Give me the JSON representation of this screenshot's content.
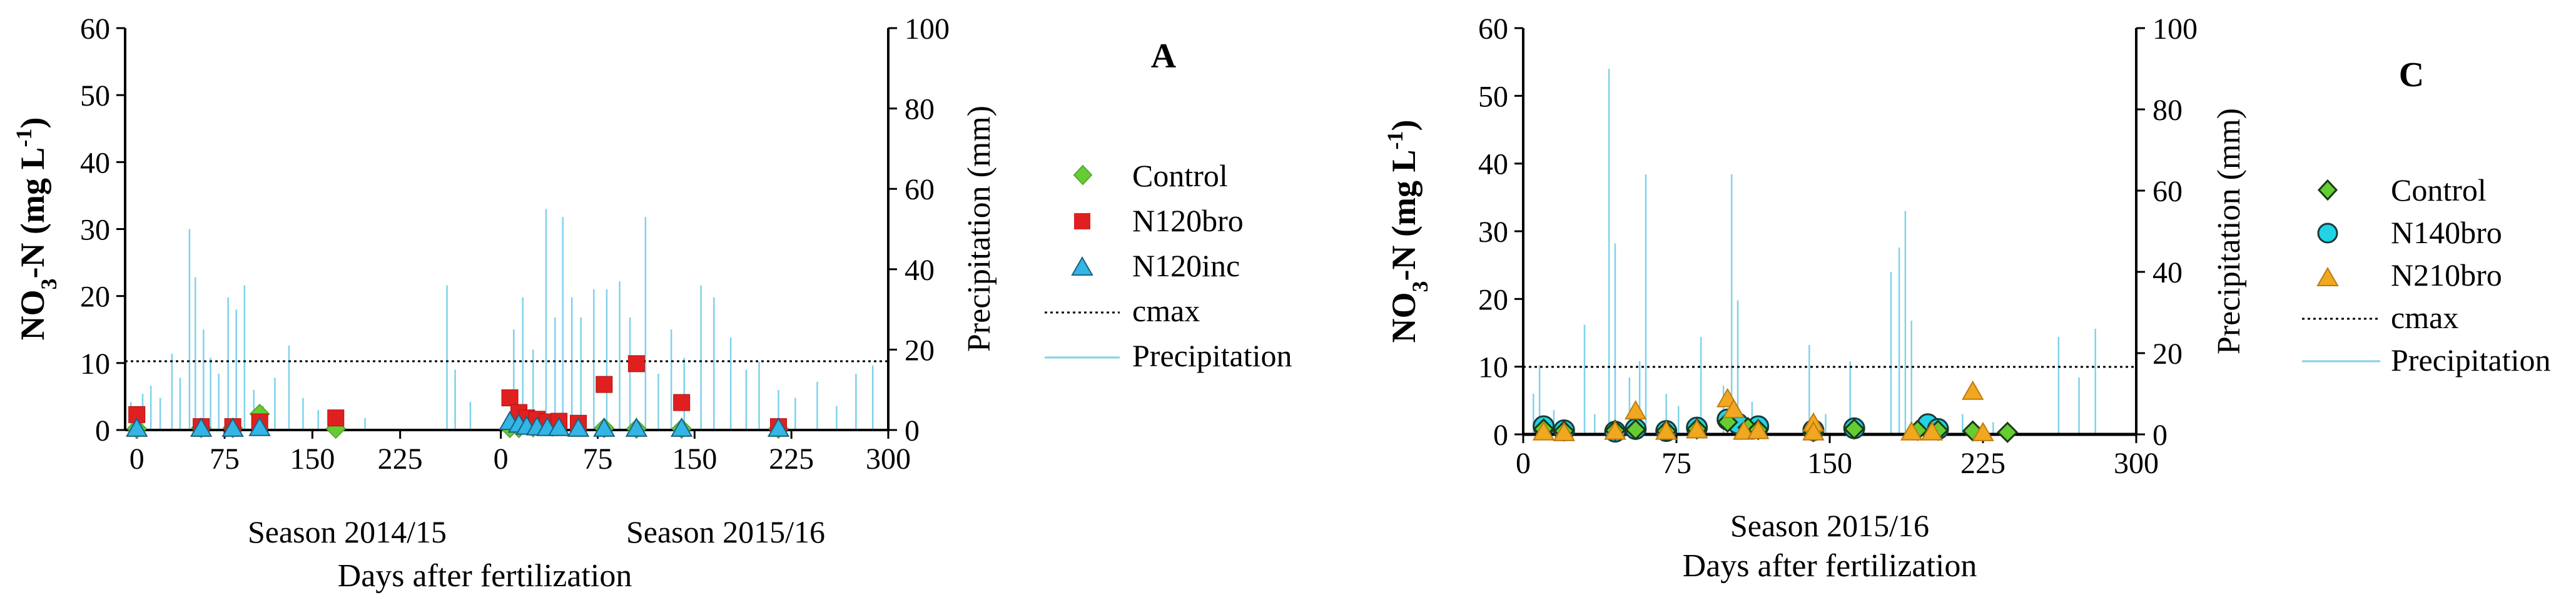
{
  "chart_data": [
    {
      "panel": "A",
      "type": "scatter",
      "ylabel": "NO3-N (mg L-1)",
      "y2label": "Precipitation (mm)",
      "xlabel": "Days after fertilization",
      "ylim": [
        0,
        60
      ],
      "y2lim": [
        0,
        100
      ],
      "y_ticks": [
        0,
        10,
        20,
        30,
        40,
        50,
        60
      ],
      "y2_ticks": [
        0,
        20,
        40,
        60,
        80,
        100
      ],
      "seasons": [
        {
          "label": "Season 2014/15",
          "xlim": [
            -10,
            300
          ],
          "ticks": [
            0,
            75,
            150,
            225
          ]
        },
        {
          "label": "Season 2015/16",
          "xlim": [
            -10,
            300
          ],
          "ticks": [
            0,
            75,
            150,
            225,
            300
          ]
        }
      ],
      "x_tick_labels": [
        "0",
        "75",
        "150",
        "225",
        "0",
        "75",
        "150",
        "225",
        "300"
      ],
      "cmax": 10,
      "legend": [
        "Control",
        "N120bro",
        "N120inc",
        "cmax",
        "Precipitation"
      ],
      "series": [
        {
          "name": "Control",
          "marker": "diamond",
          "color": "#66cc33",
          "points": [
            {
              "s": 0,
              "x": 0,
              "y": 0.2
            },
            {
              "s": 0,
              "x": 55,
              "y": 0.3
            },
            {
              "s": 0,
              "x": 82,
              "y": 0.3
            },
            {
              "s": 0,
              "x": 105,
              "y": 2.4
            },
            {
              "s": 0,
              "x": 170,
              "y": 0.2
            },
            {
              "s": 1,
              "x": 7,
              "y": 0.3
            },
            {
              "s": 1,
              "x": 14,
              "y": 0.3
            },
            {
              "s": 1,
              "x": 25,
              "y": 0.4
            },
            {
              "s": 1,
              "x": 40,
              "y": 0.5
            },
            {
              "s": 1,
              "x": 80,
              "y": 0.3
            },
            {
              "s": 1,
              "x": 105,
              "y": 0.2
            },
            {
              "s": 1,
              "x": 140,
              "y": 0.2
            },
            {
              "s": 1,
              "x": 215,
              "y": 0.2
            }
          ]
        },
        {
          "name": "N120bro",
          "marker": "square",
          "color": "#e02020",
          "points": [
            {
              "s": 0,
              "x": 0,
              "y": 2.3
            },
            {
              "s": 0,
              "x": 55,
              "y": 0.5
            },
            {
              "s": 0,
              "x": 82,
              "y": 0.5
            },
            {
              "s": 0,
              "x": 105,
              "y": 1.2
            },
            {
              "s": 0,
              "x": 170,
              "y": 1.8
            },
            {
              "s": 1,
              "x": 7,
              "y": 4.8
            },
            {
              "s": 1,
              "x": 14,
              "y": 2.6
            },
            {
              "s": 1,
              "x": 20,
              "y": 1.8
            },
            {
              "s": 1,
              "x": 28,
              "y": 1.6
            },
            {
              "s": 1,
              "x": 36,
              "y": 1.2
            },
            {
              "s": 1,
              "x": 45,
              "y": 1.3
            },
            {
              "s": 1,
              "x": 60,
              "y": 1.0
            },
            {
              "s": 1,
              "x": 80,
              "y": 6.8
            },
            {
              "s": 1,
              "x": 105,
              "y": 9.9
            },
            {
              "s": 1,
              "x": 140,
              "y": 4.1
            },
            {
              "s": 1,
              "x": 215,
              "y": 0.5
            }
          ]
        },
        {
          "name": "N120inc",
          "marker": "triangle",
          "color": "#33b5e5",
          "points": [
            {
              "s": 0,
              "x": 0,
              "y": 0.2
            },
            {
              "s": 0,
              "x": 55,
              "y": 0.2
            },
            {
              "s": 0,
              "x": 82,
              "y": 0.2
            },
            {
              "s": 0,
              "x": 105,
              "y": 0.3
            },
            {
              "s": 1,
              "x": 7,
              "y": 1.2
            },
            {
              "s": 1,
              "x": 14,
              "y": 0.8
            },
            {
              "s": 1,
              "x": 20,
              "y": 0.5
            },
            {
              "s": 1,
              "x": 28,
              "y": 0.4
            },
            {
              "s": 1,
              "x": 36,
              "y": 0.3
            },
            {
              "s": 1,
              "x": 45,
              "y": 0.3
            },
            {
              "s": 1,
              "x": 60,
              "y": 0.2
            },
            {
              "s": 1,
              "x": 80,
              "y": 0.2
            },
            {
              "s": 1,
              "x": 105,
              "y": 0.2
            },
            {
              "s": 1,
              "x": 140,
              "y": 0.2
            },
            {
              "s": 1,
              "x": 215,
              "y": 0.2
            }
          ]
        }
      ],
      "precipitation": [
        {
          "s": 0,
          "x": -5,
          "y": 7
        },
        {
          "s": 0,
          "x": 5,
          "y": 9
        },
        {
          "s": 0,
          "x": 12,
          "y": 11
        },
        {
          "s": 0,
          "x": 20,
          "y": 8
        },
        {
          "s": 0,
          "x": 30,
          "y": 19
        },
        {
          "s": 0,
          "x": 37,
          "y": 13
        },
        {
          "s": 0,
          "x": 45,
          "y": 50
        },
        {
          "s": 0,
          "x": 50,
          "y": 38
        },
        {
          "s": 0,
          "x": 57,
          "y": 25
        },
        {
          "s": 0,
          "x": 63,
          "y": 18
        },
        {
          "s": 0,
          "x": 70,
          "y": 14
        },
        {
          "s": 0,
          "x": 78,
          "y": 33
        },
        {
          "s": 0,
          "x": 85,
          "y": 30
        },
        {
          "s": 0,
          "x": 92,
          "y": 36
        },
        {
          "s": 0,
          "x": 100,
          "y": 10
        },
        {
          "s": 0,
          "x": 108,
          "y": 6
        },
        {
          "s": 0,
          "x": 118,
          "y": 13
        },
        {
          "s": 0,
          "x": 130,
          "y": 21
        },
        {
          "s": 0,
          "x": 142,
          "y": 8
        },
        {
          "s": 0,
          "x": 155,
          "y": 5
        },
        {
          "s": 0,
          "x": 175,
          "y": 4
        },
        {
          "s": 0,
          "x": 195,
          "y": 3
        },
        {
          "s": 0,
          "x": 265,
          "y": 36
        },
        {
          "s": 0,
          "x": 272,
          "y": 15
        },
        {
          "s": 0,
          "x": 285,
          "y": 7
        },
        {
          "s": 1,
          "x": 10,
          "y": 25
        },
        {
          "s": 1,
          "x": 17,
          "y": 33
        },
        {
          "s": 1,
          "x": 25,
          "y": 20
        },
        {
          "s": 1,
          "x": 35,
          "y": 55
        },
        {
          "s": 1,
          "x": 42,
          "y": 28
        },
        {
          "s": 1,
          "x": 48,
          "y": 53
        },
        {
          "s": 1,
          "x": 55,
          "y": 33
        },
        {
          "s": 1,
          "x": 62,
          "y": 28
        },
        {
          "s": 1,
          "x": 72,
          "y": 35
        },
        {
          "s": 1,
          "x": 82,
          "y": 35
        },
        {
          "s": 1,
          "x": 92,
          "y": 37
        },
        {
          "s": 1,
          "x": 100,
          "y": 28
        },
        {
          "s": 1,
          "x": 112,
          "y": 53
        },
        {
          "s": 1,
          "x": 122,
          "y": 14
        },
        {
          "s": 1,
          "x": 132,
          "y": 25
        },
        {
          "s": 1,
          "x": 142,
          "y": 18
        },
        {
          "s": 1,
          "x": 155,
          "y": 36
        },
        {
          "s": 1,
          "x": 165,
          "y": 33
        },
        {
          "s": 1,
          "x": 178,
          "y": 23
        },
        {
          "s": 1,
          "x": 190,
          "y": 15
        },
        {
          "s": 1,
          "x": 200,
          "y": 17
        },
        {
          "s": 1,
          "x": 215,
          "y": 10
        },
        {
          "s": 1,
          "x": 228,
          "y": 8
        },
        {
          "s": 1,
          "x": 245,
          "y": 12
        },
        {
          "s": 1,
          "x": 260,
          "y": 6
        },
        {
          "s": 1,
          "x": 275,
          "y": 14
        },
        {
          "s": 1,
          "x": 288,
          "y": 16
        }
      ]
    },
    {
      "panel": "C",
      "type": "scatter",
      "ylabel": "NO3-N (mg L-1)",
      "y2label": "Precipitation (mm)",
      "xlabel": "Days after fertilization",
      "season_label": "Season 2015/16",
      "xlim": [
        0,
        300
      ],
      "x_ticks": [
        0,
        75,
        150,
        225,
        300
      ],
      "ylim": [
        0,
        60
      ],
      "y2lim": [
        0,
        100
      ],
      "y_ticks": [
        0,
        10,
        20,
        30,
        40,
        50,
        60
      ],
      "y2_ticks": [
        0,
        20,
        40,
        60,
        80,
        100
      ],
      "cmax": 10,
      "legend": [
        "Control",
        "N140bro",
        "N210bro",
        "cmax",
        "Precipitation"
      ],
      "series": [
        {
          "name": "Control",
          "marker": "diamond",
          "color": "#66cc33",
          "points": [
            {
              "x": 10,
              "y": 0.8
            },
            {
              "x": 20,
              "y": 0.5
            },
            {
              "x": 45,
              "y": 0.6
            },
            {
              "x": 55,
              "y": 0.7
            },
            {
              "x": 70,
              "y": 0.5
            },
            {
              "x": 85,
              "y": 0.8
            },
            {
              "x": 100,
              "y": 1.8
            },
            {
              "x": 110,
              "y": 1.0
            },
            {
              "x": 115,
              "y": 0.7
            },
            {
              "x": 142,
              "y": 0.4
            },
            {
              "x": 162,
              "y": 0.8
            },
            {
              "x": 193,
              "y": 0.6
            },
            {
              "x": 203,
              "y": 0.6
            },
            {
              "x": 220,
              "y": 0.5
            },
            {
              "x": 237,
              "y": 0.3
            }
          ]
        },
        {
          "name": "N140bro",
          "marker": "circle",
          "color": "#22d3e6",
          "points": [
            {
              "x": 10,
              "y": 1.2
            },
            {
              "x": 20,
              "y": 0.6
            },
            {
              "x": 45,
              "y": 0.4
            },
            {
              "x": 55,
              "y": 0.8
            },
            {
              "x": 70,
              "y": 0.5
            },
            {
              "x": 85,
              "y": 1.0
            },
            {
              "x": 100,
              "y": 2.2
            },
            {
              "x": 105,
              "y": 1.6
            },
            {
              "x": 115,
              "y": 1.2
            },
            {
              "x": 142,
              "y": 0.6
            },
            {
              "x": 162,
              "y": 0.9
            },
            {
              "x": 198,
              "y": 1.5
            },
            {
              "x": 203,
              "y": 0.8
            }
          ]
        },
        {
          "name": "N210bro",
          "marker": "triangle",
          "color": "#f0a820",
          "points": [
            {
              "x": 10,
              "y": 0.3
            },
            {
              "x": 20,
              "y": 0.2
            },
            {
              "x": 45,
              "y": 0.4
            },
            {
              "x": 55,
              "y": 3.4
            },
            {
              "x": 70,
              "y": 0.4
            },
            {
              "x": 85,
              "y": 0.6
            },
            {
              "x": 100,
              "y": 5.2
            },
            {
              "x": 103,
              "y": 3.6
            },
            {
              "x": 108,
              "y": 0.4
            },
            {
              "x": 115,
              "y": 0.5
            },
            {
              "x": 142,
              "y": 1.6
            },
            {
              "x": 142,
              "y": 0.3
            },
            {
              "x": 190,
              "y": 0.3
            },
            {
              "x": 200,
              "y": 0.3
            },
            {
              "x": 220,
              "y": 6.3
            },
            {
              "x": 225,
              "y": 0.2
            }
          ]
        }
      ],
      "precipitation": [
        {
          "x": 5,
          "y": 10
        },
        {
          "x": 8,
          "y": 17
        },
        {
          "x": 15,
          "y": 6
        },
        {
          "x": 30,
          "y": 27
        },
        {
          "x": 35,
          "y": 5
        },
        {
          "x": 42,
          "y": 90
        },
        {
          "x": 45,
          "y": 47
        },
        {
          "x": 52,
          "y": 14
        },
        {
          "x": 57,
          "y": 18
        },
        {
          "x": 60,
          "y": 64
        },
        {
          "x": 70,
          "y": 10
        },
        {
          "x": 76,
          "y": 7
        },
        {
          "x": 87,
          "y": 24
        },
        {
          "x": 98,
          "y": 12
        },
        {
          "x": 102,
          "y": 64
        },
        {
          "x": 105,
          "y": 33
        },
        {
          "x": 112,
          "y": 8
        },
        {
          "x": 140,
          "y": 22
        },
        {
          "x": 148,
          "y": 5
        },
        {
          "x": 160,
          "y": 18
        },
        {
          "x": 180,
          "y": 40
        },
        {
          "x": 184,
          "y": 46
        },
        {
          "x": 187,
          "y": 55
        },
        {
          "x": 190,
          "y": 28
        },
        {
          "x": 215,
          "y": 5
        },
        {
          "x": 230,
          "y": 3
        },
        {
          "x": 262,
          "y": 24
        },
        {
          "x": 272,
          "y": 14
        },
        {
          "x": 280,
          "y": 26
        }
      ]
    }
  ],
  "panel_A": {
    "letter": "A",
    "ylabel_main": "NO",
    "ylabel_sub": "3",
    "ylabel_mid": "-N  (mg L",
    "ylabel_sup": "-1",
    "ylabel_end": ")",
    "y2label": "Precipitation (mm)",
    "season1": "Season 2014/15",
    "season2": "Season 2015/16",
    "xlabel": "Days after fertilization",
    "legend": [
      "Control",
      "N120bro",
      "N120inc",
      "cmax",
      "Precipitation"
    ]
  },
  "panel_C": {
    "letter": "C",
    "ylabel_main": "NO",
    "ylabel_sub": "3",
    "ylabel_mid": "-N  (mg L",
    "ylabel_sup": "-1",
    "ylabel_end": ")",
    "y2label": "Precipitation (mm)",
    "season": "Season 2015/16",
    "xlabel": "Days after fertilization",
    "legend": [
      "Control",
      "N140bro",
      "N210bro",
      "cmax",
      "Precipitation"
    ]
  },
  "colors": {
    "precip": "#7fd2ea",
    "control": "#66cc33",
    "n120bro": "#e02020",
    "n120inc": "#33b5e5",
    "n140bro": "#22d3e6",
    "n210bro": "#f0a820"
  }
}
